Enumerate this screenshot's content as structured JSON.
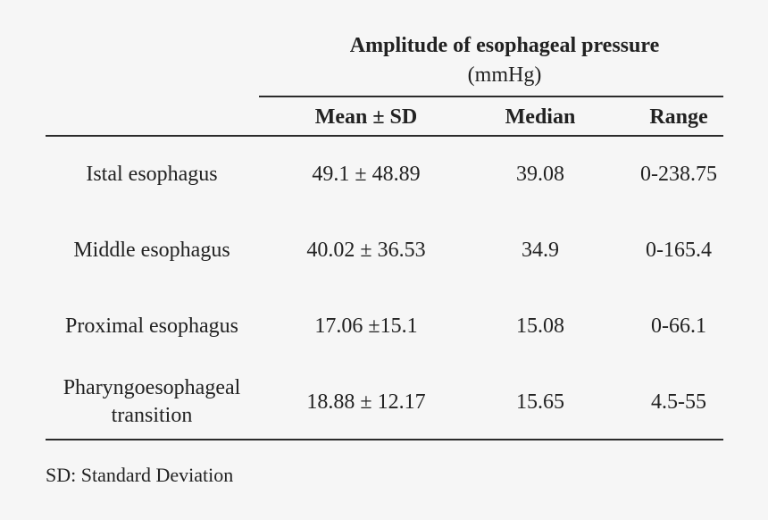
{
  "table": {
    "group_header": {
      "title": "Amplitude of esophageal pressure",
      "unit": "(mmHg)"
    },
    "columns": [
      "Mean ± SD",
      "Median",
      "Range"
    ],
    "rows": [
      {
        "label": [
          "Istal esophagus"
        ],
        "mean_sd": "49.1 ± 48.89",
        "median": "39.08",
        "range": "0-238.75"
      },
      {
        "label": [
          "Middle esophagus"
        ],
        "mean_sd": "40.02 ± 36.53",
        "median": "34.9",
        "range": "0-165.4"
      },
      {
        "label": [
          "Proximal esophagus"
        ],
        "mean_sd": "17.06 ±15.1",
        "median": "15.08",
        "range": "0-66.1"
      },
      {
        "label": [
          "Pharyngoesophageal",
          "transition"
        ],
        "mean_sd": "18.88 ± 12.17",
        "median": "15.65",
        "range": "4.5-55"
      }
    ]
  },
  "footnote": "SD: Standard Deviation"
}
